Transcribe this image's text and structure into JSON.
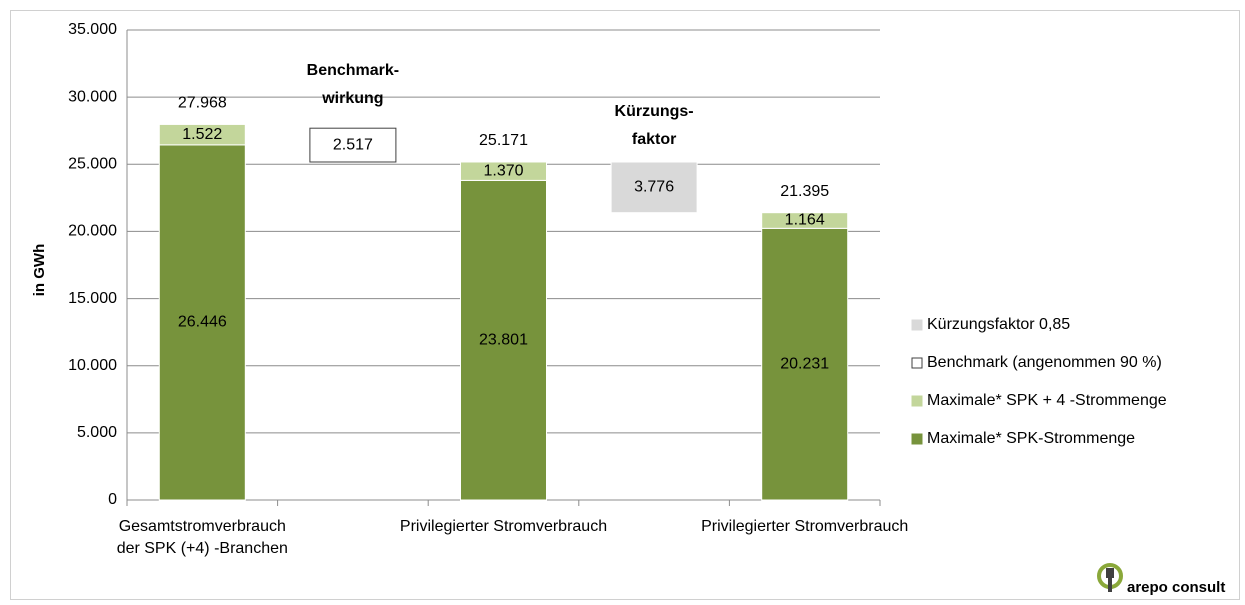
{
  "chart_data": {
    "type": "waterfall",
    "y_label": "in GWh",
    "categories": [
      [
        "Gesamtstromverbrauch",
        "der SPK (+4) -Branchen"
      ],
      null,
      [
        "Privilegierter Stromverbrauch"
      ],
      null,
      [
        "Privilegierter Stromverbrauch"
      ]
    ],
    "series": [
      {
        "name": "Maximale* SPK-Strommenge",
        "color": "#77933c",
        "values": [
          26446,
          null,
          23801,
          null,
          20231
        ],
        "value_labels": [
          "26.446",
          null,
          "23.801",
          null,
          "20.231"
        ]
      },
      {
        "name": "Maximale* SPK + 4 -Strommenge",
        "color": "#c3d69b",
        "values": [
          1522,
          null,
          1370,
          null,
          1164
        ],
        "value_labels": [
          "1.522",
          null,
          "1.370",
          null,
          "1.164"
        ]
      },
      {
        "name": "Benchmark (angenommen 90 %)",
        "color": "#ffffff",
        "border": "#404040",
        "floating": true,
        "values": [
          null,
          2517,
          null,
          null,
          null
        ],
        "value_labels": [
          null,
          "2.517",
          null,
          null,
          null
        ]
      },
      {
        "name": "Kürzungsfaktor 0,85",
        "color": "#d9d9d9",
        "floating": true,
        "values": [
          null,
          null,
          null,
          3776,
          null
        ],
        "value_labels": [
          null,
          null,
          null,
          "3.776",
          null
        ]
      }
    ],
    "totals": {
      "values": [
        27968,
        null,
        25171,
        null,
        21395
      ],
      "value_labels": [
        "27.968",
        null,
        "25.171",
        null,
        "21.395"
      ]
    },
    "annotations": [
      {
        "slot": 1,
        "lines": [
          "Benchmark-",
          "wirkung"
        ]
      },
      {
        "slot": 3,
        "lines": [
          "Kürzungs-",
          "faktor"
        ]
      }
    ],
    "ylim": [
      0,
      35000
    ],
    "yticks": [
      0,
      {
        "value": 5000,
        "label": "5.000"
      },
      {
        "value": 10000,
        "label": "10.000"
      },
      {
        "value": 15000,
        "label": "15.000"
      },
      {
        "value": 20000,
        "label": "20.000"
      },
      {
        "value": 25000,
        "label": "25.000"
      },
      {
        "value": 30000,
        "label": "30.000"
      },
      {
        "value": 35000,
        "label": "35.000"
      }
    ],
    "grid": true,
    "legend": "right",
    "logo": "arepo consult"
  }
}
